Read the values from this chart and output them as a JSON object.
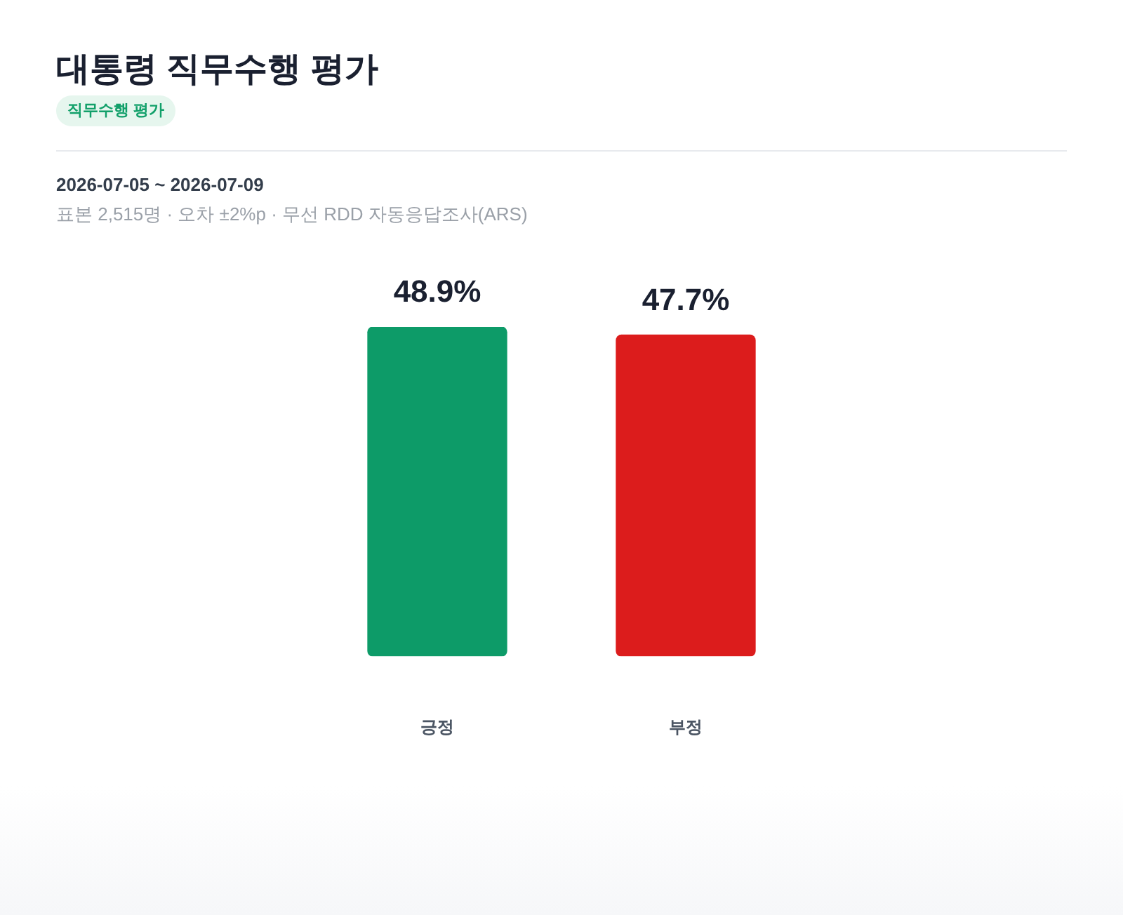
{
  "chart_data": {
    "type": "bar",
    "title": "대통령 직무수행 평가",
    "subtitle": "직무수행 평가",
    "annotations": [
      "2026-07-05 ~ 2026-07-09",
      "표본 2,515명 · 오차 ±2%p · 무선 RDD 자동응답조사(ARS)"
    ],
    "categories": [
      "긍정",
      "부정"
    ],
    "values": [
      48.9,
      47.7
    ],
    "colors": [
      "#0d9b68",
      "#dc1c1c"
    ],
    "value_labels": [
      "48.9%",
      "47.7%"
    ],
    "legend": false
  }
}
